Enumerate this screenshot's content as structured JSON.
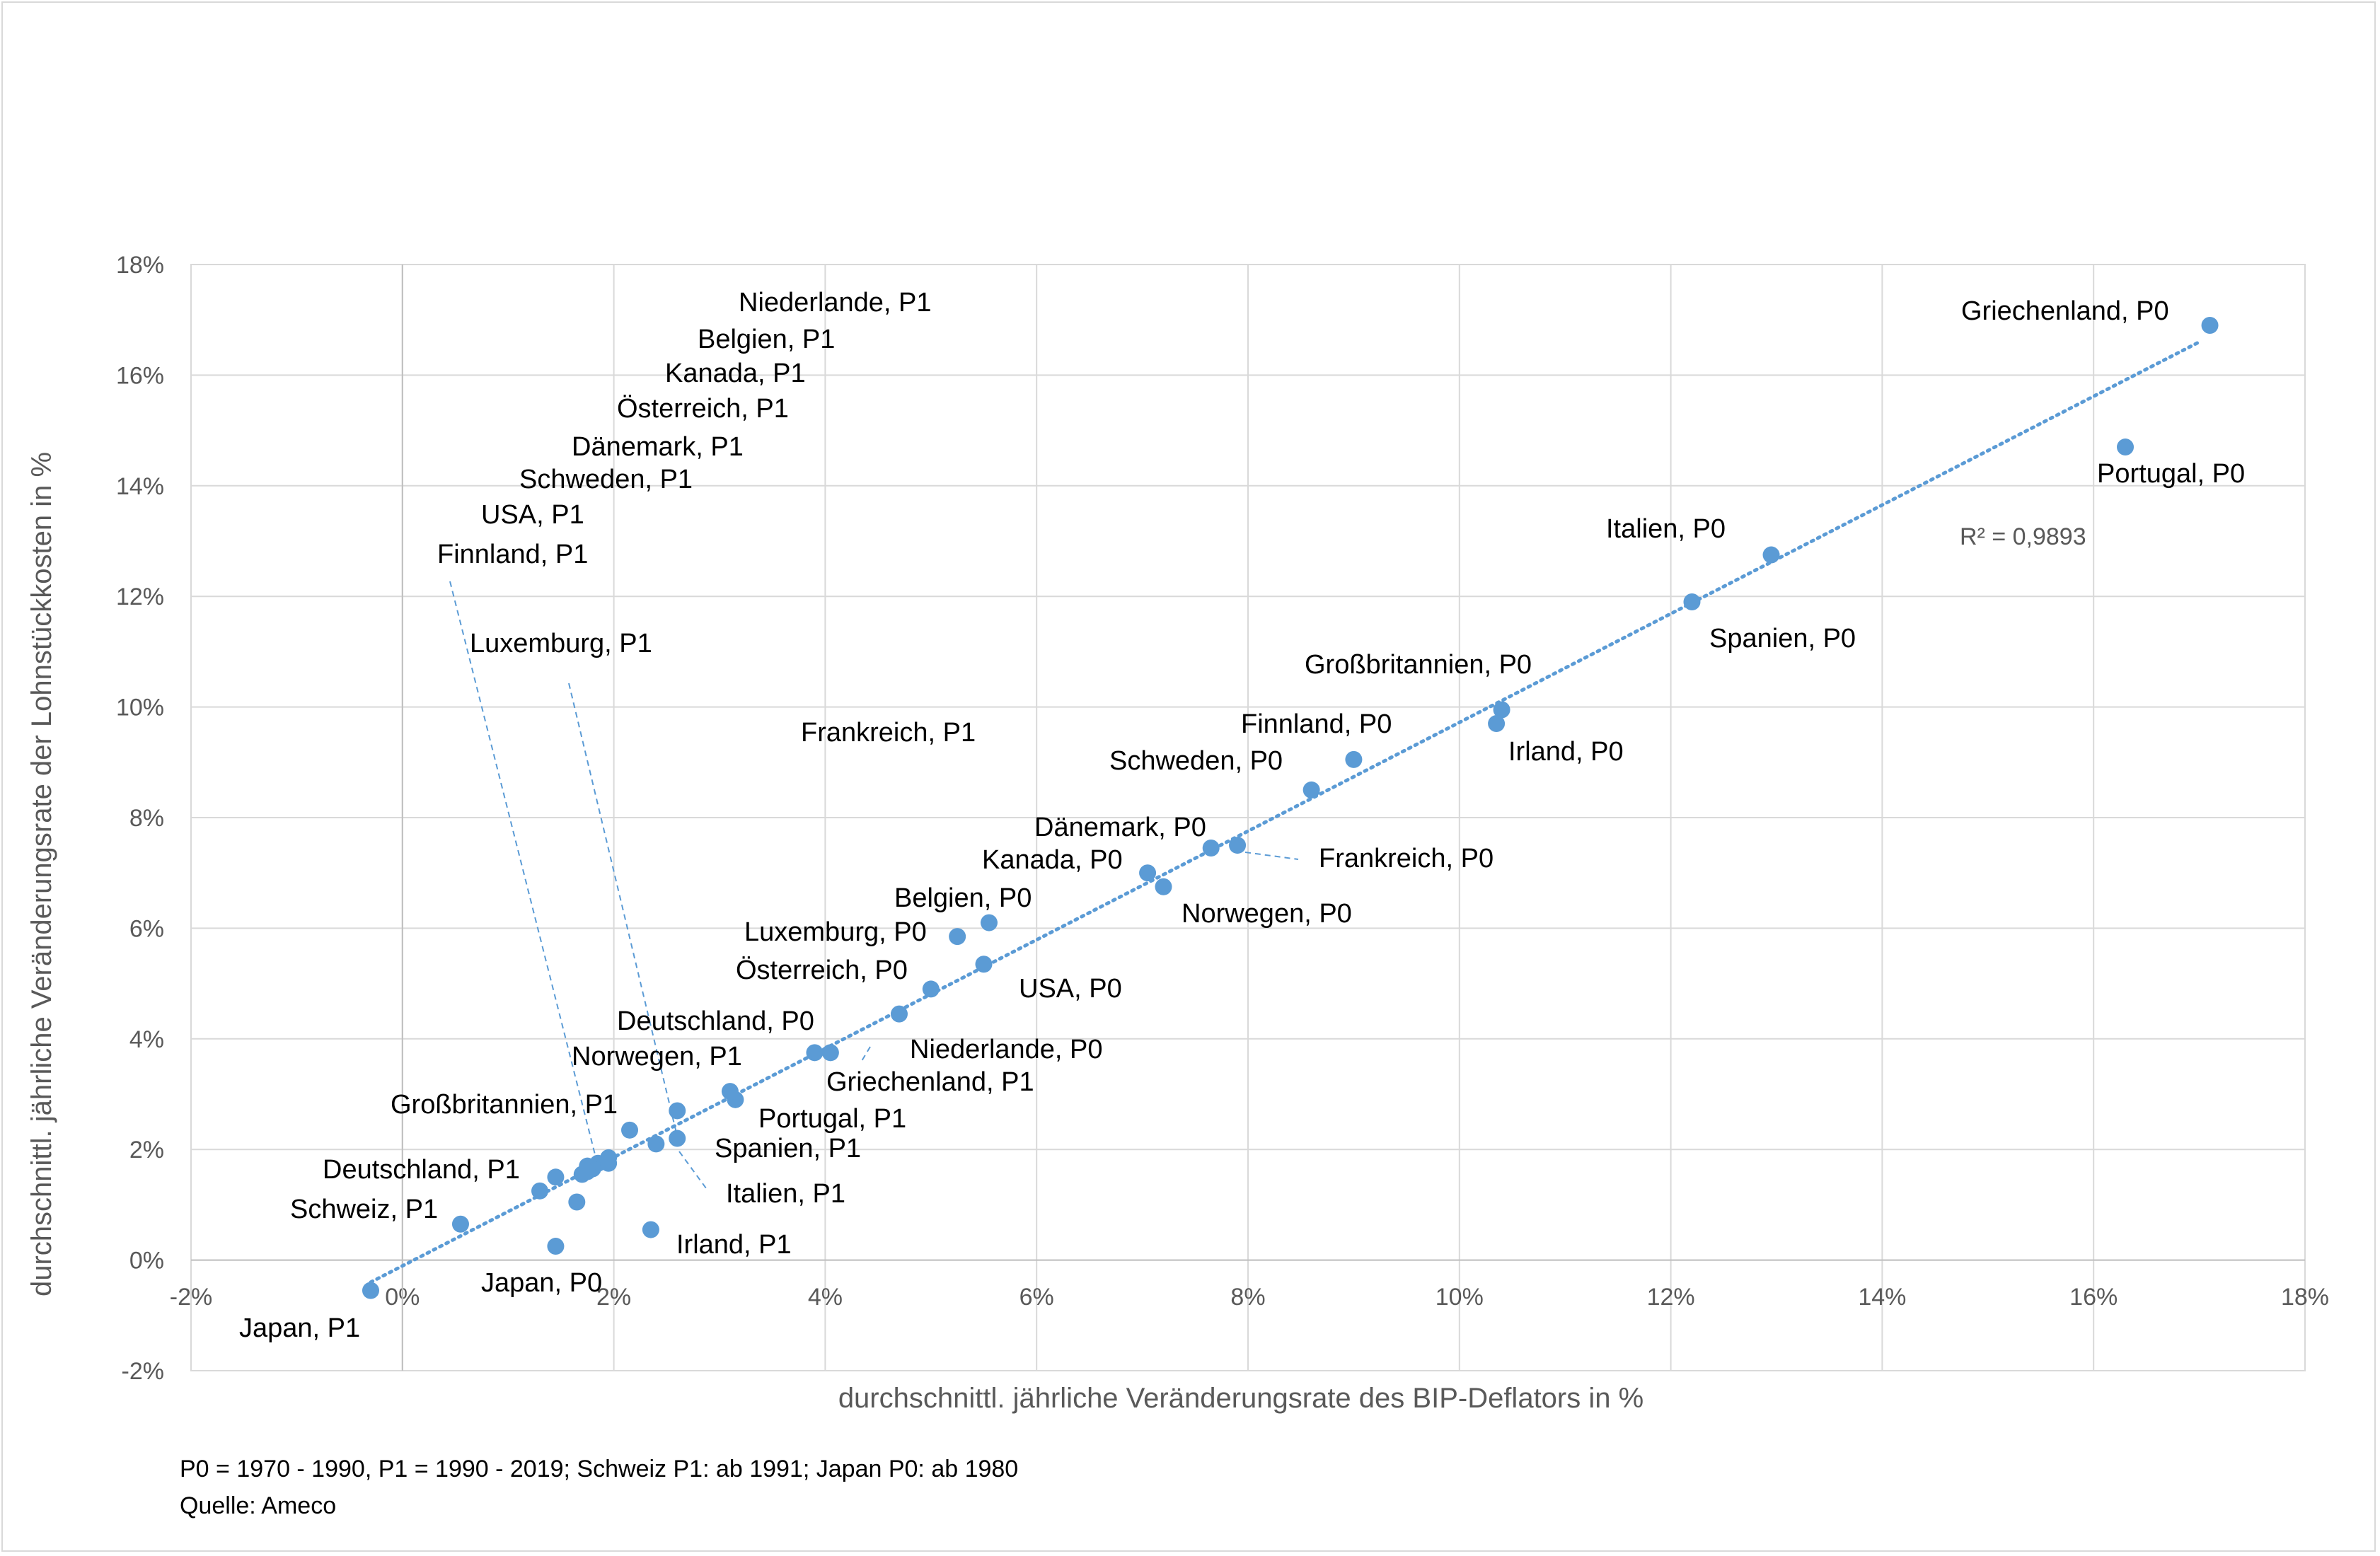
{
  "chart_data": {
    "type": "scatter",
    "xlabel": "durchschnittl. jährliche Veränderungsrate des BIP-Deflators in %",
    "ylabel": "durchschnittl. jährliche Veränderungsrate der Lohnstückkosten in %",
    "xlim": [
      -2,
      18
    ],
    "ylim": [
      -2,
      18
    ],
    "xticks": [
      "-2%",
      "0%",
      "2%",
      "4%",
      "6%",
      "8%",
      "10%",
      "12%",
      "14%",
      "16%",
      "18%"
    ],
    "yticks": [
      "-2%",
      "0%",
      "2%",
      "4%",
      "6%",
      "8%",
      "10%",
      "12%",
      "14%",
      "16%",
      "18%"
    ],
    "grid": true,
    "point_color": "#5b9bd5",
    "trendline": {
      "type": "linear",
      "style": "dotted",
      "r2_label": "R² = 0,9893",
      "from": [
        -0.3,
        -0.4
      ],
      "to": [
        17.0,
        16.6
      ]
    },
    "points": [
      {
        "label": "Griechenland, P0",
        "x": 17.1,
        "y": 16.9
      },
      {
        "label": "Portugal, P0",
        "x": 16.3,
        "y": 14.7
      },
      {
        "label": "Italien, P0",
        "x": 12.95,
        "y": 12.75
      },
      {
        "label": "Spanien, P0",
        "x": 12.2,
        "y": 11.9
      },
      {
        "label": "Großbritannien, P0",
        "x": 10.4,
        "y": 9.95
      },
      {
        "label": "Irland, P0",
        "x": 10.35,
        "y": 9.7
      },
      {
        "label": "Finnland, P0",
        "x": 9.0,
        "y": 9.05
      },
      {
        "label": "Schweden, P0",
        "x": 8.6,
        "y": 8.5
      },
      {
        "label": "Frankreich, P0",
        "x": 7.9,
        "y": 7.5
      },
      {
        "label": "Dänemark, P0",
        "x": 7.65,
        "y": 7.45
      },
      {
        "label": "Kanada, P0",
        "x": 7.05,
        "y": 7.0
      },
      {
        "label": "Norwegen, P0",
        "x": 7.2,
        "y": 6.75
      },
      {
        "label": "Belgien, P0",
        "x": 5.55,
        "y": 6.1
      },
      {
        "label": "Luxemburg, P0",
        "x": 5.25,
        "y": 5.85
      },
      {
        "label": "USA, P0",
        "x": 5.5,
        "y": 5.35
      },
      {
        "label": "Österreich, P0",
        "x": 5.0,
        "y": 4.9
      },
      {
        "label": "Niederlande, P0",
        "x": 4.7,
        "y": 4.45
      },
      {
        "label": "Deutschland, P0",
        "x": 4.05,
        "y": 3.75
      },
      {
        "label": "Griechenland, P1",
        "x": 3.9,
        "y": 3.75
      },
      {
        "label": "Portugal, P1",
        "x": 3.15,
        "y": 2.9
      },
      {
        "label": "Norwegen, P1",
        "x": 3.1,
        "y": 3.05
      },
      {
        "label": "Spanien, P1",
        "x": 2.6,
        "y": 2.2
      },
      {
        "label": "Großbritannien, P1",
        "x": 2.6,
        "y": 2.7
      },
      {
        "label": "Italien, P1",
        "x": 2.4,
        "y": 2.1
      },
      {
        "label": "Luxemburg, P1",
        "x": 2.15,
        "y": 2.35
      },
      {
        "label": "Niederlande, P1",
        "x": 1.95,
        "y": 1.85
      },
      {
        "label": "Belgien, P1",
        "x": 1.85,
        "y": 1.75
      },
      {
        "label": "Kanada, P1",
        "x": 1.95,
        "y": 1.75
      },
      {
        "label": "Österreich, P1",
        "x": 1.8,
        "y": 1.65
      },
      {
        "label": "Dänemark, P1",
        "x": 1.75,
        "y": 1.7
      },
      {
        "label": "Schweden, P1",
        "x": 1.7,
        "y": 1.55
      },
      {
        "label": "Finnland, P1",
        "x": 1.75,
        "y": 1.6
      },
      {
        "label": "USA, P1",
        "x": 1.65,
        "y": 1.05
      },
      {
        "label": "Deutschland, P1",
        "x": 1.45,
        "y": 1.5
      },
      {
        "label": "Frankreich, P1",
        "x": 1.3,
        "y": 1.25
      },
      {
        "label": "Irland, P1",
        "x": 2.35,
        "y": 0.55
      },
      {
        "label": "Japan, P0",
        "x": 1.45,
        "y": 0.25
      },
      {
        "label": "Schweiz, P1",
        "x": 0.55,
        "y": 0.65
      },
      {
        "label": "Japan, P1",
        "x": -0.3,
        "y": -0.55
      }
    ]
  },
  "notes": {
    "line1": "P0 = 1970 - 1990, P1 = 1990 - 2019; Schweiz P1: ab 1991; Japan P0: ab 1980",
    "line2": "Quelle: Ameco"
  }
}
